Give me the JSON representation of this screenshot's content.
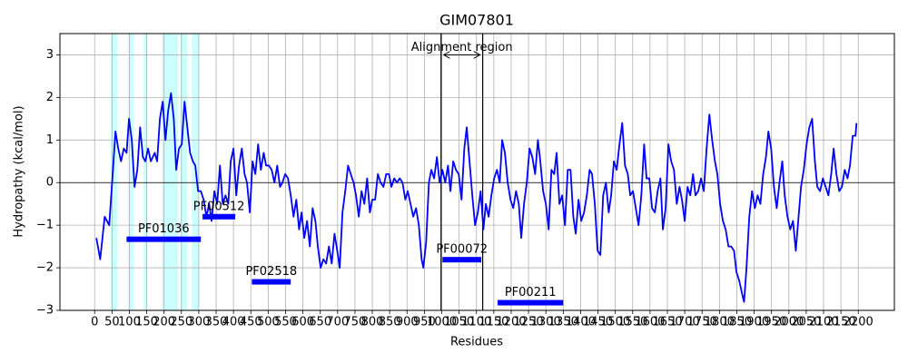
{
  "chart_data": {
    "type": "line",
    "title": "GIM07801",
    "x_label": "Residues",
    "y_label": "Hydropathy (kcal/mol)",
    "xlim": [
      -100,
      2304
    ],
    "ylim": [
      -3,
      3.5
    ],
    "xticks": [
      0,
      50,
      100,
      150,
      200,
      250,
      300,
      350,
      400,
      450,
      500,
      550,
      600,
      650,
      700,
      750,
      800,
      850,
      900,
      950,
      1000,
      1050,
      1100,
      1150,
      1200,
      1250,
      1300,
      1350,
      1400,
      1450,
      1500,
      1550,
      1600,
      1650,
      1700,
      1750,
      1800,
      1850,
      1900,
      1950,
      2000,
      2050,
      2100,
      2150,
      2200
    ],
    "yticks": [
      {
        "value": -3,
        "label": "−3"
      },
      {
        "value": -2,
        "label": "−2"
      },
      {
        "value": -1,
        "label": "−1"
      },
      0,
      1,
      2,
      3
    ],
    "grid": true,
    "zero_line": true,
    "series": [
      {
        "name": "Hydropathy",
        "color": "#0000ff",
        "x": [
          5,
          16,
          29,
          42,
          52,
          60,
          68,
          76,
          84,
          92,
          99,
          107,
          115,
          123,
          131,
          139,
          146,
          154,
          162,
          173,
          180,
          188,
          196,
          204,
          212,
          220,
          228,
          235,
          243,
          251,
          259,
          267,
          275,
          283,
          290,
          298,
          306,
          314,
          322,
          330,
          337,
          345,
          353,
          361,
          369,
          377,
          385,
          392,
          400,
          408,
          416,
          424,
          432,
          439,
          447,
          455,
          463,
          471,
          479,
          487,
          494,
          502,
          510,
          518,
          526,
          534,
          541,
          549,
          557,
          565,
          573,
          581,
          589,
          596,
          604,
          612,
          620,
          628,
          636,
          643,
          651,
          659,
          667,
          675,
          683,
          691,
          699,
          706,
          714,
          722,
          730,
          738,
          746,
          753,
          761,
          769,
          777,
          785,
          793,
          800,
          808,
          816,
          824,
          832,
          840,
          848,
          855,
          863,
          871,
          879,
          887,
          895,
          902,
          910,
          918,
          926,
          934,
          942,
          947,
          955,
          963,
          970,
          978,
          986,
          994,
          1002,
          1010,
          1018,
          1025,
          1033,
          1041,
          1049,
          1057,
          1065,
          1072,
          1080,
          1088,
          1096,
          1104,
          1112,
          1120,
          1127,
          1135,
          1143,
          1151,
          1159,
          1167,
          1174,
          1182,
          1190,
          1198,
          1206,
          1214,
          1222,
          1229,
          1237,
          1245,
          1253,
          1261,
          1269,
          1277,
          1284,
          1292,
          1300,
          1308,
          1316,
          1324,
          1331,
          1339,
          1347,
          1355,
          1363,
          1371,
          1379,
          1386,
          1394,
          1402,
          1410,
          1418,
          1426,
          1433,
          1441,
          1449,
          1457,
          1465,
          1473,
          1481,
          1488,
          1496,
          1504,
          1512,
          1520,
          1528,
          1536,
          1543,
          1551,
          1559,
          1567,
          1575,
          1583,
          1590,
          1598,
          1606,
          1614,
          1622,
          1630,
          1637,
          1645,
          1653,
          1661,
          1669,
          1677,
          1685,
          1692,
          1700,
          1708,
          1716,
          1724,
          1731,
          1739,
          1747,
          1755,
          1763,
          1771,
          1779,
          1787,
          1794,
          1802,
          1810,
          1818,
          1826,
          1834,
          1842,
          1849,
          1857,
          1865,
          1871,
          1878,
          1886,
          1894,
          1902,
          1910,
          1918,
          1926,
          1934,
          1941,
          1949,
          1957,
          1965,
          1973,
          1981,
          1988,
          1996,
          2004,
          2012,
          2020,
          2027,
          2035,
          2043,
          2051,
          2059,
          2067,
          2075,
          2082,
          2090,
          2098,
          2106,
          2114,
          2122,
          2129,
          2137,
          2145,
          2153,
          2161,
          2169,
          2176,
          2184,
          2192,
          2195
        ],
        "values": [
          -1.3,
          -1.8,
          -0.8,
          -1.0,
          0.2,
          1.2,
          0.8,
          0.5,
          0.8,
          0.7,
          1.5,
          1.0,
          -0.1,
          0.3,
          1.3,
          0.6,
          0.5,
          0.8,
          0.5,
          0.7,
          0.5,
          1.5,
          1.9,
          1.0,
          1.7,
          2.1,
          1.5,
          0.3,
          0.8,
          0.9,
          1.9,
          1.3,
          0.7,
          0.5,
          0.4,
          -0.2,
          -0.2,
          -0.4,
          -0.8,
          -0.5,
          -0.9,
          -0.2,
          -0.5,
          0.4,
          -0.5,
          -0.3,
          -0.5,
          0.5,
          0.8,
          -0.3,
          0.4,
          0.8,
          0.2,
          0.0,
          -0.7,
          0.5,
          0.2,
          0.9,
          0.3,
          0.7,
          0.4,
          0.4,
          0.3,
          0.0,
          0.4,
          -0.1,
          0.0,
          0.2,
          0.1,
          -0.3,
          -0.8,
          -0.4,
          -1.1,
          -0.7,
          -1.3,
          -0.9,
          -1.5,
          -0.6,
          -0.9,
          -1.5,
          -2.0,
          -1.8,
          -1.9,
          -1.5,
          -1.9,
          -1.2,
          -1.6,
          -2.0,
          -0.7,
          -0.2,
          0.4,
          0.2,
          0.0,
          -0.3,
          -0.8,
          -0.2,
          -0.5,
          0.1,
          -0.7,
          -0.4,
          -0.4,
          0.2,
          0.0,
          -0.1,
          0.2,
          0.2,
          -0.1,
          0.1,
          0.0,
          0.1,
          0.0,
          -0.4,
          -0.2,
          -0.5,
          -0.8,
          -0.6,
          -1.0,
          -1.8,
          -2.0,
          -1.4,
          0.0,
          0.3,
          0.1,
          0.6,
          0.0,
          0.3,
          0.0,
          0.4,
          -0.2,
          0.5,
          0.3,
          0.2,
          -0.4,
          0.8,
          1.3,
          0.5,
          -0.3,
          -1.0,
          -0.7,
          -0.2,
          -1.1,
          -0.5,
          -0.8,
          -0.3,
          0.1,
          0.3,
          0.0,
          1.0,
          0.7,
          0.0,
          -0.4,
          -0.6,
          -0.2,
          -0.5,
          -1.3,
          -0.5,
          0.0,
          0.8,
          0.6,
          0.2,
          1.0,
          0.5,
          -0.2,
          -0.5,
          -1.1,
          0.3,
          0.2,
          0.7,
          -0.5,
          -0.3,
          -1.0,
          0.3,
          0.3,
          -0.8,
          -1.2,
          -0.4,
          -0.9,
          -0.7,
          -0.3,
          0.3,
          0.2,
          -0.5,
          -1.6,
          -1.7,
          -0.3,
          0.0,
          -0.7,
          -0.3,
          0.5,
          0.3,
          0.9,
          1.4,
          0.4,
          0.2,
          -0.3,
          -0.2,
          -0.6,
          -1.0,
          -0.3,
          0.9,
          0.1,
          0.1,
          -0.6,
          -0.7,
          -0.2,
          0.1,
          -1.1,
          -0.6,
          0.9,
          0.5,
          0.3,
          -0.5,
          -0.1,
          -0.4,
          -0.9,
          -0.1,
          -0.3,
          0.2,
          -0.3,
          -0.2,
          0.1,
          -0.2,
          0.8,
          1.6,
          1.0,
          0.5,
          0.2,
          -0.5,
          -0.9,
          -1.1,
          -1.5,
          -1.5,
          -1.6,
          -2.1,
          -2.3,
          -2.6,
          -2.8,
          -2.0,
          -0.8,
          -0.2,
          -0.6,
          -0.3,
          -0.5,
          0.2,
          0.6,
          1.2,
          0.8,
          -0.1,
          -0.6,
          0.0,
          0.5,
          -0.3,
          -0.8,
          -1.1,
          -0.9,
          -1.6,
          -0.9,
          -0.1,
          0.3,
          0.9,
          1.3,
          1.5,
          0.5,
          -0.1,
          -0.2,
          0.1,
          -0.1,
          -0.3,
          0.2,
          0.8,
          0.2,
          -0.2,
          -0.1,
          0.3,
          0.1,
          0.4,
          1.1,
          1.1,
          1.4
        ]
      }
    ],
    "span_color": "#00ffff",
    "spans": [
      [
        47,
        65
      ],
      [
        97,
        113
      ],
      [
        141,
        152
      ],
      [
        194,
        241
      ],
      [
        248,
        267
      ],
      [
        280,
        301
      ]
    ],
    "alignment_region": {
      "label": "Alignment region",
      "start": 998,
      "end": 1118,
      "y": 3
    },
    "domain_color": "#0000ff",
    "domains": [
      {
        "name": "PF01036",
        "start": 92,
        "end": 306,
        "y": -1.33
      },
      {
        "name": "PF00512",
        "start": 311,
        "end": 405,
        "y": -0.8
      },
      {
        "name": "PF02518",
        "start": 453,
        "end": 565,
        "y": -2.33
      },
      {
        "name": "PF00072",
        "start": 1002,
        "end": 1114,
        "y": -1.81
      },
      {
        "name": "PF00211",
        "start": 1161,
        "end": 1350,
        "y": -2.82
      }
    ]
  }
}
